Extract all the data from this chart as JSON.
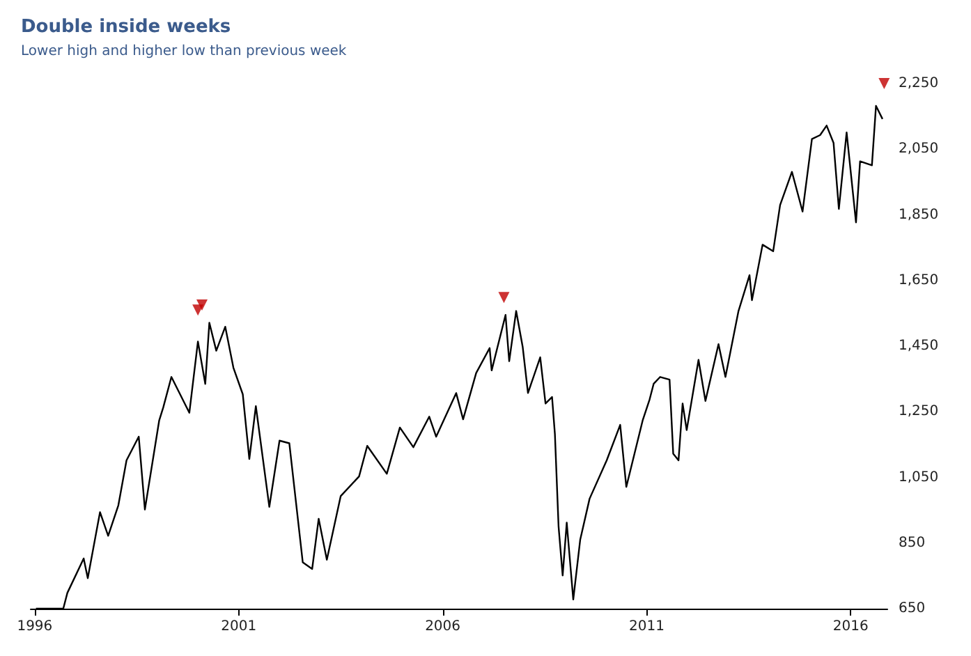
{
  "chart_data": {
    "type": "line",
    "title": "Double inside weeks",
    "subtitle": "Lower high and higher low than previous week",
    "xlim": [
      1995.9,
      2016.9
    ],
    "xticks": [
      1996,
      2001,
      2006,
      2011,
      2016
    ],
    "ylim": [
      650,
      2250
    ],
    "yticks": [
      {
        "value": 650,
        "label": "650"
      },
      {
        "value": 850,
        "label": "850"
      },
      {
        "value": 1050,
        "label": "1,050"
      },
      {
        "value": 1250,
        "label": "1,250"
      },
      {
        "value": 1450,
        "label": "1,450"
      },
      {
        "value": 1650,
        "label": "1,650"
      },
      {
        "value": 1850,
        "label": "1,850"
      },
      {
        "value": 2050,
        "label": "2,050"
      },
      {
        "value": 2250,
        "label": "2,250"
      }
    ],
    "grid": false,
    "series": [
      {
        "color": "#000000",
        "x": [
          1996.03,
          1996.7,
          1996.8,
          1997.2,
          1997.3,
          1997.6,
          1997.8,
          1998.05,
          1998.25,
          1998.55,
          1998.7,
          1999.05,
          1999.15,
          1999.35,
          1999.79,
          2000.0,
          2000.18,
          2000.28,
          2000.45,
          2000.67,
          2000.87,
          2001.1,
          2001.26,
          2001.42,
          2001.75,
          2002.0,
          2002.24,
          2002.57,
          2002.8,
          2002.96,
          2003.16,
          2003.5,
          2003.95,
          2004.15,
          2004.63,
          2004.95,
          2005.28,
          2005.67,
          2005.84,
          2006.33,
          2006.5,
          2006.82,
          2007.15,
          2007.2,
          2007.54,
          2007.63,
          2007.8,
          2007.96,
          2008.09,
          2008.39,
          2008.52,
          2008.68,
          2008.75,
          2008.84,
          2008.94,
          2009.04,
          2009.2,
          2009.37,
          2009.6,
          2010.02,
          2010.35,
          2010.5,
          2010.9,
          2011.07,
          2011.17,
          2011.33,
          2011.56,
          2011.65,
          2011.78,
          2011.88,
          2011.98,
          2012.27,
          2012.44,
          2012.76,
          2012.93,
          2013.25,
          2013.52,
          2013.58,
          2013.84,
          2014.1,
          2014.27,
          2014.56,
          2014.82,
          2015.05,
          2015.25,
          2015.41,
          2015.58,
          2015.71,
          2015.9,
          2016.13,
          2016.23,
          2016.52,
          2016.62,
          2016.78
        ],
        "values": [
          650,
          650,
          698,
          803,
          743,
          944,
          872,
          965,
          1102,
          1174,
          952,
          1223,
          1263,
          1356,
          1247,
          1464,
          1335,
          1521,
          1436,
          1509,
          1384,
          1303,
          1106,
          1267,
          960,
          1162,
          1154,
          791,
          771,
          924,
          799,
          993,
          1053,
          1146,
          1061,
          1202,
          1142,
          1235,
          1174,
          1307,
          1227,
          1368,
          1444,
          1376,
          1545,
          1404,
          1557,
          1448,
          1307,
          1416,
          1275,
          1295,
          1182,
          900,
          751,
          912,
          678,
          860,
          985,
          1102,
          1210,
          1021,
          1223,
          1287,
          1335,
          1356,
          1348,
          1122,
          1102,
          1275,
          1194,
          1408,
          1283,
          1456,
          1356,
          1557,
          1666,
          1590,
          1759,
          1739,
          1880,
          1981,
          1860,
          2081,
          2093,
          2122,
          2069,
          1868,
          2101,
          1827,
          2013,
          2001,
          2182,
          2142
        ]
      },
      {
        "type": "scatter",
        "color": "#c00000",
        "marker": "triangle",
        "x": [
          2000.0,
          2000.1,
          2007.5,
          2016.82
        ],
        "values": [
          1560,
          1575,
          1598,
          2250
        ]
      }
    ]
  }
}
